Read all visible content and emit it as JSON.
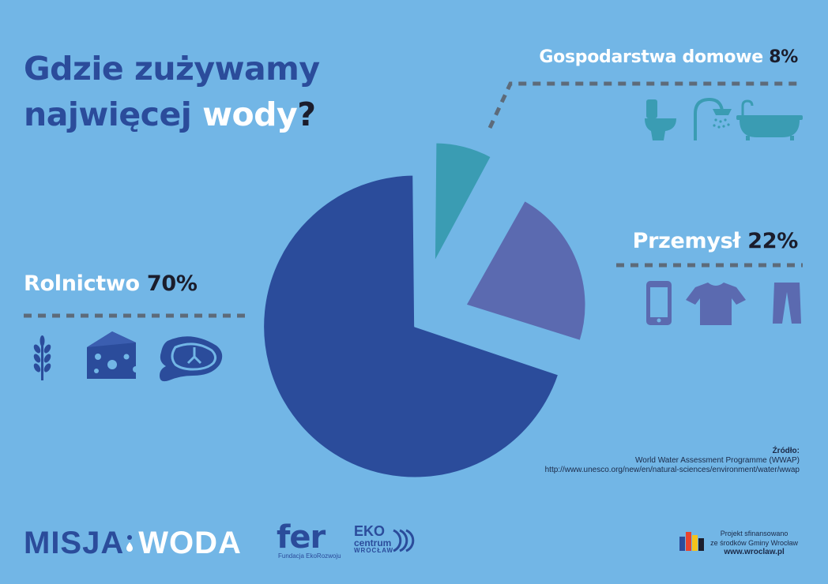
{
  "title": {
    "line1": "Gdzie zużywamy",
    "line2_a": "najwięcej ",
    "line2_b": "wody",
    "line2_c": "?"
  },
  "chart_data": {
    "type": "pie",
    "title": "Gdzie zużywamy najwięcej wody?",
    "slices": [
      {
        "name": "Gospodarstwa domowe",
        "value": 8,
        "label": "8%",
        "color": "#3a9cb3"
      },
      {
        "name": "Przemysł",
        "value": 22,
        "label": "22%",
        "color": "#5b6ab0"
      },
      {
        "name": "Rolnictwo",
        "value": 70,
        "label": "70%",
        "color": "#2b4c9b"
      }
    ]
  },
  "categories": {
    "home": {
      "name": "Gospodarstwa domowe",
      "pct": "8%",
      "icons": [
        "toilet-icon",
        "shower-icon",
        "bathtub-icon"
      ]
    },
    "industry": {
      "name": "Przemysł",
      "pct": "22%",
      "icons": [
        "smartphone-icon",
        "tshirt-icon",
        "trousers-icon"
      ]
    },
    "agriculture": {
      "name": "Rolnictwo",
      "pct": "70%",
      "icons": [
        "wheat-icon",
        "cheese-icon",
        "steak-icon"
      ]
    }
  },
  "source": {
    "heading": "Źródło:",
    "name": "World Water Assessment Programme (WWAP)",
    "url": "http://www.unesco.org/new/en/natural-sciences/environment/water/wwap"
  },
  "footer": {
    "misja": "MISJA",
    "woda": "WODA",
    "fer_logo": "fer",
    "fer_sub": "Fundacja EkoRozwoju",
    "eko_l1": "EKO",
    "eko_l2": "centrum",
    "eko_l3": "WROCŁAW",
    "funding_line1": "Projekt sfinansowano",
    "funding_line2": "ze środków  Gminy Wrocław",
    "url": "www.wroclaw.pl"
  },
  "colors": {
    "background": "#72b6e6",
    "dark_blue": "#2b4c9b",
    "teal": "#3a9cb3",
    "purple": "#5b6ab0",
    "dashes": "#5d6b7a",
    "dark_text": "#1b1d2c"
  }
}
